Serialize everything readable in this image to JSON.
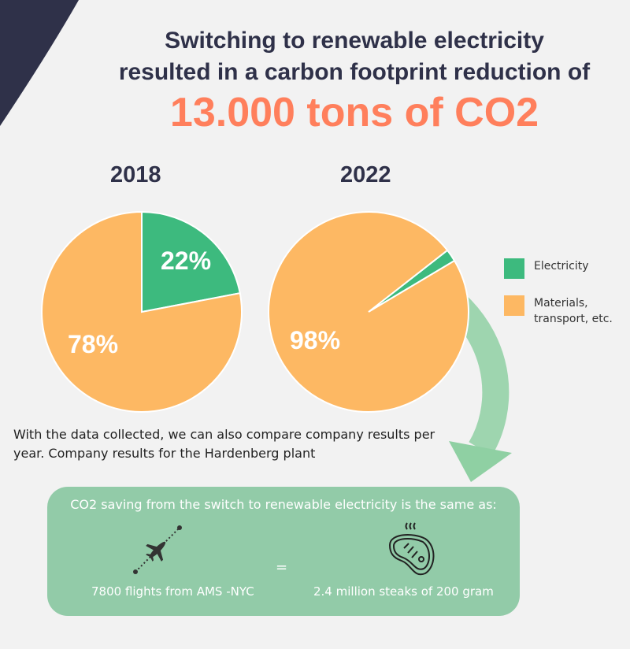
{
  "header": {
    "line1": "Switching to renewable electricity",
    "line2": "resulted in a carbon footprint reduction of",
    "highlight": "13.000 tons of CO2"
  },
  "colors": {
    "electricity": "#3dba7e",
    "materials": "#fdb863",
    "navy": "#2f3149",
    "highlight": "#ff7f5c",
    "box": "#92cba8"
  },
  "chart_data": [
    {
      "type": "pie",
      "title": "2018",
      "categories": [
        "Electricity",
        "Materials, transport, etc."
      ],
      "values": [
        22,
        78
      ],
      "labels": [
        "22%",
        "78%"
      ]
    },
    {
      "type": "pie",
      "title": "2022",
      "categories": [
        "Electricity",
        "Materials, transport, etc."
      ],
      "values": [
        2,
        98
      ],
      "labels": [
        "2%",
        "98%"
      ]
    }
  ],
  "legend": [
    {
      "label_lines": [
        "Electricity"
      ]
    },
    {
      "label_lines": [
        "Materials,",
        "transport, etc."
      ]
    }
  ],
  "description": "With the data collected, we can also compare company results per year. Company results for the Hardenberg plant",
  "equivalence": {
    "title": "CO2 saving from the switch to renewable electricity is the same as:",
    "left_icon": "airplane-route-icon",
    "left_label": "7800 flights from AMS -NYC",
    "equals": "=",
    "right_icon": "steak-icon",
    "right_label": "2.4 million steaks of 200 gram"
  }
}
